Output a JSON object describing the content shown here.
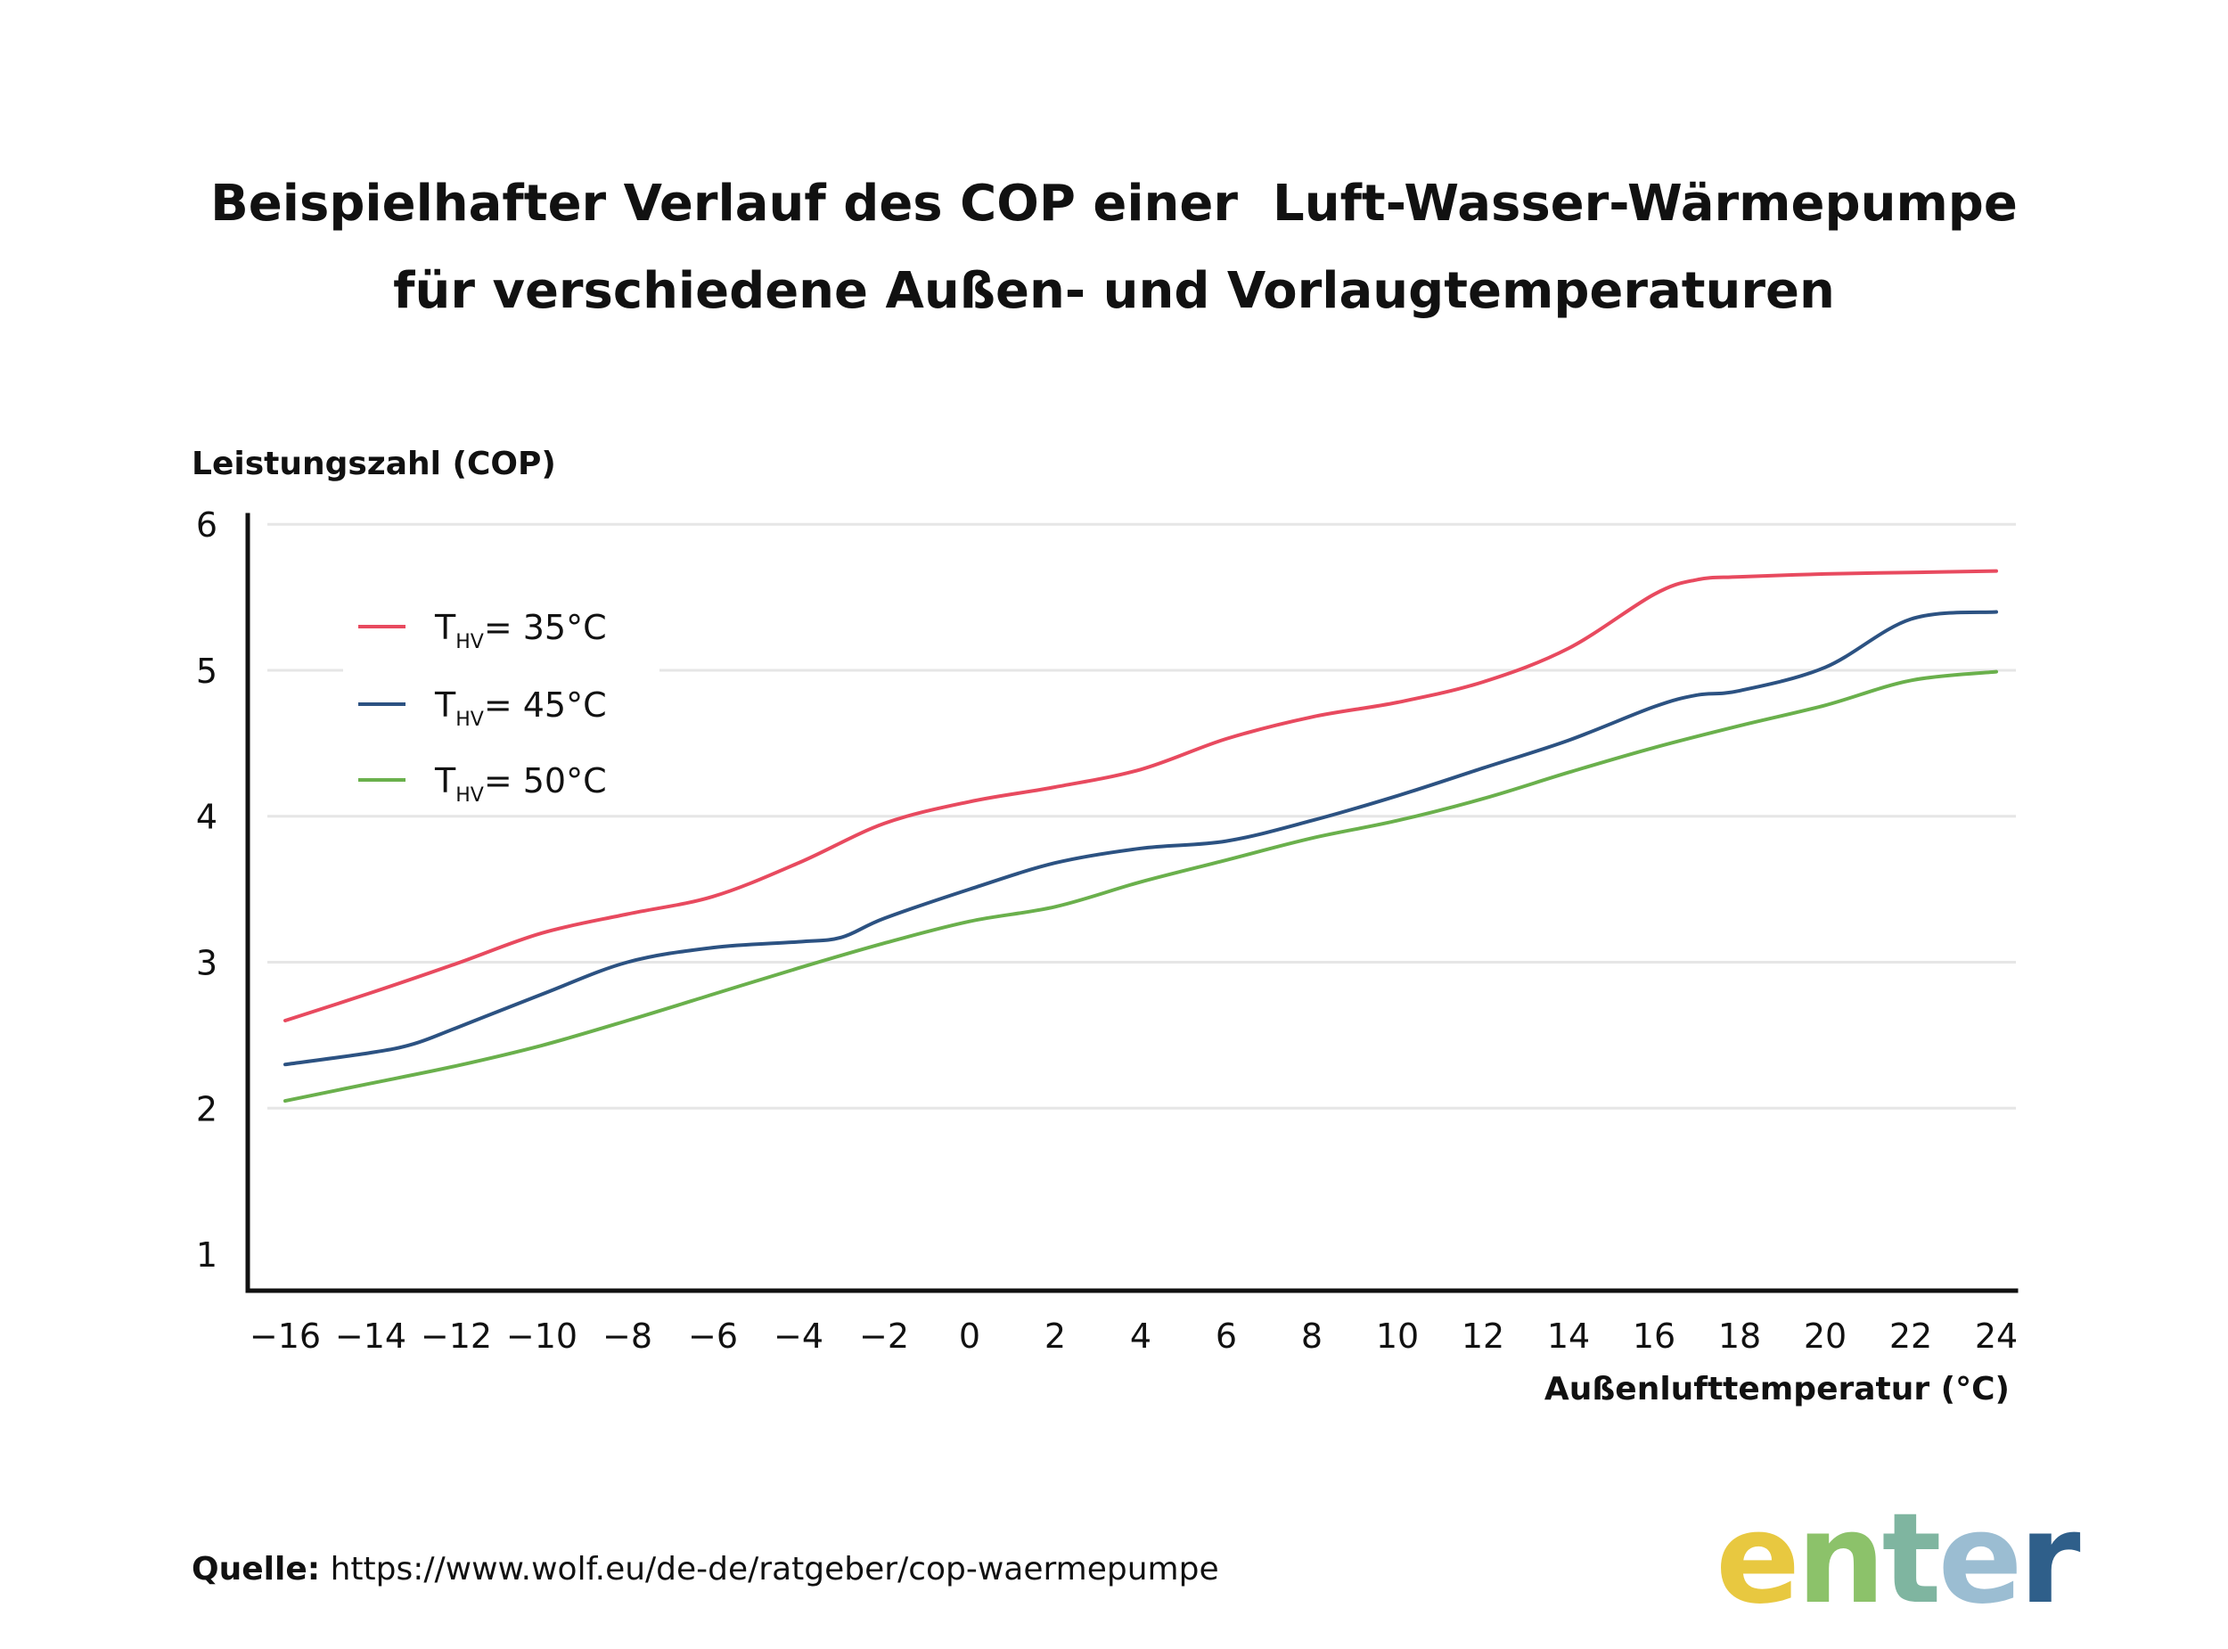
{
  "title": {
    "line1": "Beispielhafter Verlauf des COP einer  Luft-Wasser-Wärmepumpe",
    "line2": "für verschiedene Außen- und Vorlaugtemperaturen"
  },
  "chart_data": {
    "type": "line",
    "ylabel": "Leistungszahl (COP)",
    "xlabel": "Außenlufttemperatur (°C)",
    "ylim": [
      0.75,
      6.05
    ],
    "xlim": [
      -16,
      24
    ],
    "yticks": [
      1,
      2,
      3,
      4,
      5,
      6
    ],
    "xticks": [
      "-16",
      "-14",
      "-12",
      "-10",
      "-8",
      "-6",
      "-4",
      "-2",
      "0",
      "2",
      "4",
      "6",
      "8",
      "10",
      "12",
      "14",
      "16",
      "18",
      "20",
      "22",
      "24"
    ],
    "grid": "horizontal",
    "legend_position": "top-left",
    "series": [
      {
        "name": "T_HV = 35°C",
        "legend_main": "T",
        "legend_sub": "HV",
        "legend_rest": "= 35°C",
        "color": "#e84a5f",
        "x": [
          -16,
          -14,
          -12,
          -10,
          -8,
          -6,
          -4,
          -2,
          0,
          2,
          4,
          6,
          8,
          10,
          12,
          14,
          16,
          17,
          18,
          20,
          22,
          24
        ],
        "y": [
          2.6,
          2.79,
          2.99,
          3.2,
          3.33,
          3.45,
          3.68,
          3.95,
          4.1,
          4.2,
          4.32,
          4.53,
          4.68,
          4.78,
          4.92,
          5.15,
          5.52,
          5.62,
          5.64,
          5.66,
          5.67,
          5.68
        ]
      },
      {
        "name": "T_HV = 45°C",
        "legend_main": "T",
        "legend_sub": "HV",
        "legend_rest": "= 45°C",
        "color": "#2c5282",
        "x": [
          -16,
          -14,
          -13,
          -12,
          -10,
          -8,
          -6,
          -4,
          -3,
          -2,
          0,
          2,
          4,
          6,
          8,
          10,
          12,
          14,
          16,
          17,
          18,
          20,
          22,
          24
        ],
        "y": [
          2.3,
          2.38,
          2.44,
          2.55,
          2.78,
          3.0,
          3.1,
          3.14,
          3.17,
          3.3,
          3.5,
          3.68,
          3.78,
          3.83,
          3.97,
          4.14,
          4.33,
          4.52,
          4.75,
          4.83,
          4.86,
          5.02,
          5.35,
          5.4
        ]
      },
      {
        "name": "T_HV = 50°C",
        "legend_main": "T",
        "legend_sub": "HV",
        "legend_rest": "= 50°C",
        "color": "#6ab04c",
        "x": [
          -16,
          -14,
          -12,
          -10,
          -8,
          -6,
          -4,
          -2,
          0,
          2,
          4,
          6,
          8,
          10,
          12,
          14,
          16,
          18,
          20,
          22,
          24
        ],
        "y": [
          2.05,
          2.17,
          2.29,
          2.43,
          2.6,
          2.78,
          2.96,
          3.13,
          3.28,
          3.38,
          3.55,
          3.7,
          3.85,
          3.97,
          4.12,
          4.3,
          4.47,
          4.62,
          4.76,
          4.93,
          4.99
        ]
      }
    ]
  },
  "source": {
    "label": "Quelle:",
    "url": "https://www.wolf.eu/de-de/ratgeber/cop-waermepumpe"
  },
  "logo": {
    "letters": [
      "e",
      "n",
      "t",
      "e",
      "r"
    ],
    "colors": [
      "#e8c840",
      "#8cc26a",
      "#7fb5a0",
      "#9bbdd2",
      "#2f5f8a"
    ]
  }
}
